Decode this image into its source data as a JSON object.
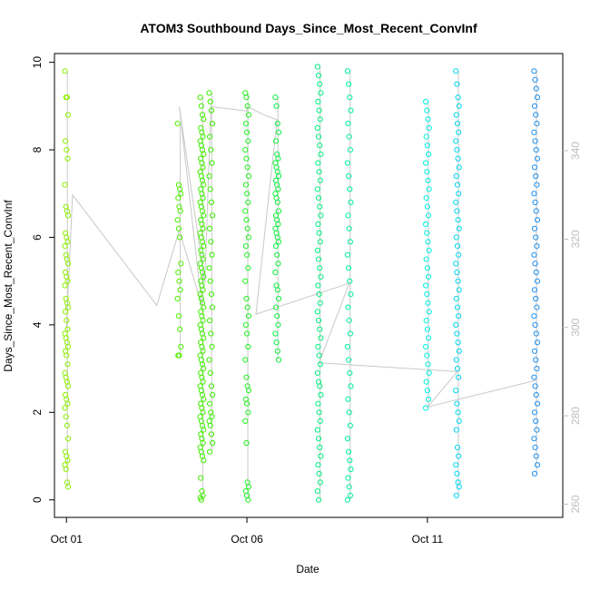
{
  "chart_data": {
    "type": "scatter",
    "title": "ATOM3 Southbound Days_Since_Most_Recent_ConvInf",
    "xlabel": "Date",
    "ylabel": "Days_Since_Most_Recent_ConvInf",
    "x_tick_labels": [
      "Oct 01",
      "Oct 06",
      "Oct 11"
    ],
    "x_tick_dates": [
      "2021-10-01",
      "2021-10-06",
      "2021-10-11"
    ],
    "xlim": [
      "2021-09-30T16:00",
      "2021-10-14T18:00"
    ],
    "ylim": [
      -0.4,
      10.2
    ],
    "y_ticks": [
      0,
      2,
      4,
      6,
      8,
      10
    ],
    "y2_ticks": [
      260,
      280,
      300,
      320,
      340
    ],
    "y2lim": [
      257,
      362
    ],
    "grid": false,
    "point_style": "open-circle",
    "color_gradient": [
      "#7fff00",
      "#00ff40",
      "#00ffff",
      "#1e90ff"
    ],
    "secondary_line_color": "#c8c8c8",
    "columns": [
      {
        "time": "2021-10-01T00:00",
        "color": "#8cf000",
        "values": [
          9.8,
          9.2,
          9.2,
          8.8,
          8.2,
          8.0,
          7.8,
          7.2,
          6.7,
          6.6,
          6.5,
          6.1,
          6.0,
          5.9,
          5.8,
          5.6,
          5.5,
          5.4,
          5.2,
          5.1,
          5.0,
          4.9,
          4.6,
          4.5,
          4.4,
          4.3,
          4.1,
          3.9,
          3.8,
          3.7,
          3.6,
          3.5,
          3.4,
          3.3,
          3.1,
          2.9,
          2.8,
          2.7,
          2.6,
          2.4,
          2.3,
          2.2,
          2.1,
          1.9,
          1.7,
          1.4,
          1.1,
          1.0,
          0.9,
          0.8,
          0.7,
          0.4,
          0.3
        ]
      },
      {
        "time": "2021-10-04T03:00",
        "color": "#50f000",
        "values": [
          8.6,
          7.2,
          7.1,
          7.0,
          6.9,
          6.7,
          6.6,
          6.4,
          6.2,
          6.0,
          5.4,
          5.2,
          5.0,
          4.8,
          4.6,
          4.2,
          3.9,
          3.5,
          3.3,
          3.3
        ]
      },
      {
        "time": "2021-10-04T18:00",
        "color": "#40f000",
        "values": [
          9.2,
          9.0,
          8.8,
          8.7,
          8.5,
          8.4,
          8.3,
          8.2,
          8.1,
          8.0,
          7.9,
          7.8,
          7.7,
          7.6,
          7.5,
          7.4,
          7.3,
          7.2,
          7.1,
          7.0,
          6.9,
          6.8,
          6.7,
          6.6,
          6.5,
          6.4,
          6.3,
          6.2,
          6.1,
          6.0,
          5.9,
          5.8,
          5.7,
          5.6,
          5.5,
          5.4,
          5.3,
          5.2,
          5.1,
          5.0,
          4.9,
          4.8,
          4.7,
          4.6,
          4.5,
          4.4,
          4.3,
          4.2,
          4.1,
          4.0,
          3.9,
          3.8,
          3.7,
          3.6,
          3.5,
          3.4,
          3.3,
          3.2,
          3.1,
          3.0,
          2.9,
          2.8,
          2.7,
          2.6,
          2.5,
          2.4,
          2.3,
          2.2,
          2.1,
          2.0,
          1.9,
          1.8,
          1.7,
          1.6,
          1.5,
          1.4,
          1.3,
          1.2,
          1.1,
          1.0,
          0.9,
          0.5,
          0.2,
          0.1,
          0.05,
          0.0
        ]
      },
      {
        "time": "2021-10-05T00:00",
        "color": "#38f000",
        "values": [
          9.3,
          9.1,
          8.9,
          8.6,
          8.3,
          8.0,
          7.7,
          7.4,
          7.1,
          6.8,
          6.5,
          6.2,
          5.9,
          5.6,
          5.3,
          5.0,
          4.7,
          4.4,
          4.1,
          3.8,
          3.5,
          3.2,
          2.9,
          2.6,
          2.4,
          2.2,
          2.0,
          1.9,
          1.8,
          1.7,
          1.5,
          1.3,
          1.1
        ]
      },
      {
        "time": "2021-10-06T00:00",
        "color": "#20f020",
        "values": [
          9.3,
          9.2,
          9.0,
          8.8,
          8.6,
          8.4,
          8.2,
          8.0,
          7.8,
          7.6,
          7.4,
          7.2,
          7.0,
          6.8,
          6.6,
          6.4,
          6.2,
          6.0,
          5.8,
          5.6,
          5.3,
          5.0,
          4.6,
          4.4,
          4.2,
          4.0,
          3.8,
          3.5,
          3.2,
          2.8,
          2.6,
          2.5,
          2.3,
          2.2,
          2.0,
          1.8,
          1.3,
          0.4,
          0.3,
          0.2,
          0.1,
          0.0
        ]
      },
      {
        "time": "2021-10-06T20:00",
        "color": "#10f040",
        "values": [
          9.2,
          9.0,
          8.6,
          8.4,
          8.2,
          7.9,
          7.8,
          7.7,
          7.6,
          7.5,
          7.4,
          7.3,
          7.2,
          7.1,
          7.0,
          6.9,
          6.8,
          6.6,
          6.5,
          6.4,
          6.3,
          6.2,
          6.1,
          6.0,
          5.9,
          5.8,
          5.6,
          5.4,
          5.2,
          4.9,
          4.8,
          4.6,
          4.4,
          4.2,
          4.0,
          3.8,
          3.6,
          3.4,
          3.2
        ]
      },
      {
        "time": "2021-10-08T00:00",
        "color": "#00f080",
        "values": [
          9.9,
          9.7,
          9.5,
          9.3,
          9.1,
          8.9,
          8.7,
          8.5,
          8.3,
          8.1,
          7.9,
          7.7,
          7.5,
          7.3,
          7.1,
          6.9,
          6.7,
          6.5,
          6.3,
          6.1,
          5.9,
          5.7,
          5.5,
          5.3,
          5.1,
          4.9,
          4.7,
          4.5,
          4.3,
          4.1,
          3.9,
          3.7,
          3.5,
          3.3,
          3.1,
          2.9,
          2.7,
          2.6,
          2.4,
          2.2,
          2.0,
          1.8,
          1.6,
          1.4,
          1.2,
          1.0,
          0.8,
          0.6,
          0.4,
          0.2,
          0.0
        ]
      },
      {
        "time": "2021-10-08T20:00",
        "color": "#00f0a0",
        "values": [
          9.8,
          9.5,
          9.2,
          8.9,
          8.6,
          8.3,
          8.0,
          7.7,
          7.4,
          7.1,
          6.8,
          6.5,
          6.2,
          5.9,
          5.6,
          5.3,
          5.0,
          4.7,
          4.4,
          4.1,
          3.8,
          3.5,
          3.2,
          2.9,
          2.6,
          2.3,
          2.0,
          1.7,
          1.4,
          1.1,
          0.9,
          0.7,
          0.5,
          0.3,
          0.1,
          0.0
        ]
      },
      {
        "time": "2021-10-11T00:00",
        "color": "#00f0e0",
        "values": [
          9.1,
          8.9,
          8.7,
          8.5,
          8.3,
          8.1,
          7.9,
          7.7,
          7.5,
          7.3,
          7.1,
          6.9,
          6.7,
          6.5,
          6.3,
          6.1,
          5.9,
          5.7,
          5.5,
          5.3,
          5.1,
          4.9,
          4.7,
          4.5,
          4.3,
          4.1,
          3.9,
          3.7,
          3.5,
          3.3,
          3.1,
          2.9,
          2.7,
          2.5,
          2.3,
          2.1
        ]
      },
      {
        "time": "2021-10-11T20:00",
        "color": "#00d8f0",
        "values": [
          9.8,
          9.5,
          9.2,
          9.0,
          8.8,
          8.6,
          8.4,
          8.2,
          8.0,
          7.8,
          7.6,
          7.4,
          7.2,
          7.0,
          6.8,
          6.6,
          6.4,
          6.2,
          6.0,
          5.8,
          5.6,
          5.4,
          5.2,
          5.0,
          4.8,
          4.6,
          4.4,
          4.2,
          4.0,
          3.8,
          3.6,
          3.4,
          3.2,
          3.0,
          2.8,
          2.5,
          2.2,
          2.0,
          1.8,
          1.6,
          1.2,
          1.0,
          0.8,
          0.6,
          0.4,
          0.3,
          0.1
        ]
      },
      {
        "time": "2021-10-14T00:00",
        "color": "#1e90f0",
        "values": [
          9.8,
          9.6,
          9.4,
          9.2,
          9.0,
          8.8,
          8.6,
          8.4,
          8.2,
          8.0,
          7.8,
          7.6,
          7.4,
          7.2,
          7.0,
          6.8,
          6.6,
          6.4,
          6.2,
          6.0,
          5.8,
          5.6,
          5.4,
          5.2,
          5.0,
          4.8,
          4.6,
          4.4,
          4.2,
          4.0,
          3.8,
          3.6,
          3.4,
          3.2,
          3.0,
          2.8,
          2.6,
          2.4,
          2.2,
          2.0,
          1.8,
          1.6,
          1.4,
          1.2,
          1.0,
          0.8,
          0.6
        ]
      }
    ],
    "secondary_series": {
      "color": "#c8c8c8",
      "points": [
        {
          "t": "2021-10-01T00:00",
          "v": 300
        },
        {
          "t": "2021-10-01T04:00",
          "v": 330
        },
        {
          "t": "2021-10-03T12:00",
          "v": 305
        },
        {
          "t": "2021-10-04T03:00",
          "v": 322
        },
        {
          "t": "2021-10-04T18:00",
          "v": 305
        },
        {
          "t": "2021-10-04T03:00",
          "v": 350
        },
        {
          "t": "2021-10-04T20:00",
          "v": 310
        },
        {
          "t": "2021-10-05T00:00",
          "v": 350
        },
        {
          "t": "2021-10-06T00:00",
          "v": 349
        },
        {
          "t": "2021-10-06T00:00",
          "v": 350
        },
        {
          "t": "2021-10-06T12:00",
          "v": 348
        },
        {
          "t": "2021-10-06T20:00",
          "v": 347
        },
        {
          "t": "2021-10-06T06:00",
          "v": 303
        },
        {
          "t": "2021-10-08T20:00",
          "v": 310
        },
        {
          "t": "2021-10-08T00:00",
          "v": 292
        },
        {
          "t": "2021-10-11T20:00",
          "v": 290
        },
        {
          "t": "2021-10-11T00:00",
          "v": 282
        },
        {
          "t": "2021-10-14T00:00",
          "v": 288
        }
      ]
    }
  }
}
